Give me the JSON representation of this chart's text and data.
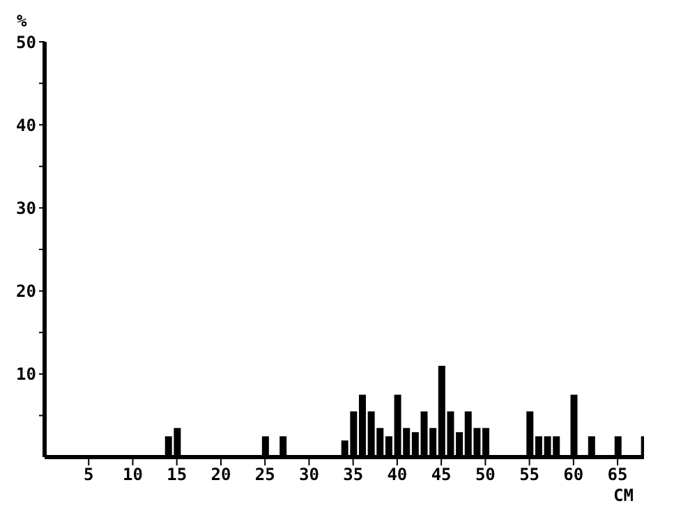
{
  "chart_data": {
    "type": "bar",
    "xlabel": "CM",
    "ylabel": "%",
    "x": [
      14,
      15,
      25,
      27,
      34,
      35,
      36,
      37,
      38,
      39,
      40,
      41,
      42,
      43,
      44,
      45,
      46,
      47,
      48,
      49,
      50,
      55,
      56,
      57,
      58,
      60,
      62,
      65,
      68
    ],
    "values": [
      2.5,
      3.5,
      2.5,
      2.5,
      2,
      5.5,
      7.5,
      5.5,
      3.5,
      2.5,
      7.5,
      3.5,
      3,
      5.5,
      3.5,
      11,
      5.5,
      3,
      5.5,
      3.5,
      3.5,
      5.5,
      2.5,
      2.5,
      2.5,
      7.5,
      2.5,
      2.5,
      2.5
    ],
    "color": "#000000",
    "xlim": [
      0,
      68
    ],
    "xticks": [
      5,
      10,
      15,
      20,
      25,
      30,
      35,
      40,
      45,
      50,
      55,
      60,
      65
    ],
    "ylim": [
      0,
      50
    ],
    "yticks": [
      {
        "value": 5,
        "label": null
      },
      10,
      {
        "value": 15,
        "label": null
      },
      20,
      {
        "value": 25,
        "label": null
      },
      30,
      {
        "value": 35,
        "label": null
      },
      40,
      {
        "value": 45,
        "label": null
      },
      50
    ],
    "grid": false,
    "legend": false
  }
}
